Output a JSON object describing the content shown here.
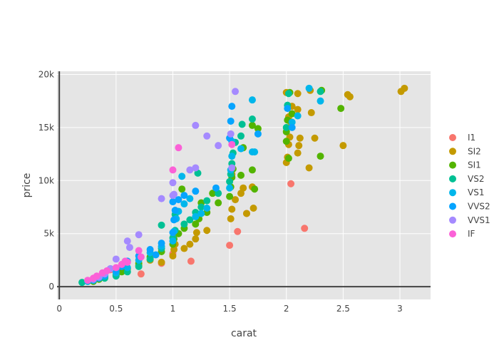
{
  "chart_data": {
    "type": "scatter",
    "title": "",
    "xlabel": "carat",
    "ylabel": "price",
    "xlim": [
      -0.02,
      3.27
    ],
    "ylim": [
      -1200,
      20300
    ],
    "x_ticks": [
      0,
      0.5,
      1,
      1.5,
      2,
      2.5,
      3
    ],
    "x_tick_labels": [
      "0",
      "0.5",
      "1",
      "1.5",
      "2",
      "2.5",
      "3"
    ],
    "y_ticks": [
      0,
      5000,
      10000,
      15000,
      20000
    ],
    "y_tick_labels": [
      "0",
      "5k",
      "10k",
      "15k",
      "20k"
    ],
    "grid": true,
    "plot_background": "#e5e5e5",
    "legend_position": "right",
    "legend": [
      "I1",
      "SI2",
      "SI1",
      "VS2",
      "VS1",
      "VVS2",
      "VVS1",
      "IF"
    ],
    "series": [
      {
        "name": "I1",
        "color": "#f8766d",
        "points": [
          [
            0.45,
            1600
          ],
          [
            0.72,
            1200
          ],
          [
            0.9,
            2200
          ],
          [
            1.0,
            3100
          ],
          [
            1.16,
            2400
          ],
          [
            1.5,
            3900
          ],
          [
            1.57,
            5200
          ],
          [
            1.65,
            6900
          ],
          [
            2.04,
            9700
          ],
          [
            2.16,
            5500
          ]
        ]
      },
      {
        "name": "SI2",
        "color": "#c49a00",
        "points": [
          [
            0.7,
            2000
          ],
          [
            0.8,
            2500
          ],
          [
            0.9,
            2300
          ],
          [
            1.0,
            2900
          ],
          [
            1.01,
            3500
          ],
          [
            1.02,
            4000
          ],
          [
            1.1,
            3600
          ],
          [
            1.15,
            4000
          ],
          [
            1.2,
            4500
          ],
          [
            1.21,
            5100
          ],
          [
            1.3,
            5300
          ],
          [
            1.51,
            6400
          ],
          [
            1.52,
            7300
          ],
          [
            1.55,
            8200
          ],
          [
            1.6,
            8800
          ],
          [
            1.62,
            9300
          ],
          [
            1.7,
            9400
          ],
          [
            1.71,
            7400
          ],
          [
            1.52,
            10600
          ],
          [
            1.65,
            6900
          ],
          [
            2.0,
            11700
          ],
          [
            2.01,
            12200
          ],
          [
            2.02,
            13400
          ],
          [
            2.03,
            14100
          ],
          [
            2.04,
            15500
          ],
          [
            2.05,
            17000
          ],
          [
            2.1,
            18200
          ],
          [
            2.1,
            16700
          ],
          [
            2.11,
            13300
          ],
          [
            2.12,
            14000
          ],
          [
            2.2,
            11200
          ],
          [
            2.22,
            16400
          ],
          [
            2.21,
            18500
          ],
          [
            2.25,
            14000
          ],
          [
            2.5,
            13300
          ],
          [
            2.54,
            18100
          ],
          [
            2.56,
            17900
          ],
          [
            3.01,
            18400
          ],
          [
            3.04,
            18700
          ],
          [
            2.0,
            18300
          ],
          [
            2.1,
            12600
          ],
          [
            2.02,
            16000
          ]
        ]
      },
      {
        "name": "SI1",
        "color": "#53b400",
        "points": [
          [
            0.3,
            500
          ],
          [
            0.35,
            700
          ],
          [
            0.4,
            900
          ],
          [
            0.5,
            1100
          ],
          [
            0.55,
            1400
          ],
          [
            0.6,
            1700
          ],
          [
            0.7,
            2200
          ],
          [
            0.8,
            2800
          ],
          [
            0.9,
            3300
          ],
          [
            1.0,
            4000
          ],
          [
            1.01,
            4500
          ],
          [
            1.05,
            5000
          ],
          [
            1.1,
            5500
          ],
          [
            1.2,
            5900
          ],
          [
            1.23,
            6400
          ],
          [
            1.3,
            7000
          ],
          [
            1.4,
            7900
          ],
          [
            1.5,
            8500
          ],
          [
            1.51,
            9400
          ],
          [
            1.52,
            10300
          ],
          [
            1.53,
            11100
          ],
          [
            1.6,
            10500
          ],
          [
            1.7,
            11000
          ],
          [
            1.72,
            9200
          ],
          [
            1.62,
            13100
          ],
          [
            1.7,
            15200
          ],
          [
            1.75,
            14900
          ],
          [
            2.0,
            14600
          ],
          [
            2.0,
            13700
          ],
          [
            2.01,
            15700
          ],
          [
            2.02,
            12100
          ],
          [
            2.03,
            18300
          ],
          [
            2.05,
            16300
          ],
          [
            2.3,
            12300
          ],
          [
            2.31,
            18500
          ],
          [
            2.48,
            16800
          ],
          [
            1.25,
            7900
          ],
          [
            1.08,
            9200
          ],
          [
            1.35,
            8800
          ]
        ]
      },
      {
        "name": "VS2",
        "color": "#00c094",
        "points": [
          [
            0.2,
            400
          ],
          [
            0.25,
            500
          ],
          [
            0.3,
            600
          ],
          [
            0.4,
            800
          ],
          [
            0.5,
            1000
          ],
          [
            0.6,
            1400
          ],
          [
            0.7,
            1900
          ],
          [
            0.8,
            2600
          ],
          [
            0.9,
            3600
          ],
          [
            1.0,
            4600
          ],
          [
            1.02,
            5300
          ],
          [
            1.1,
            5900
          ],
          [
            1.15,
            6300
          ],
          [
            1.2,
            7000
          ],
          [
            1.25,
            7500
          ],
          [
            1.3,
            8100
          ],
          [
            1.4,
            8800
          ],
          [
            1.5,
            9900
          ],
          [
            1.51,
            10600
          ],
          [
            1.52,
            11600
          ],
          [
            1.53,
            12600
          ],
          [
            1.55,
            13600
          ],
          [
            1.6,
            14200
          ],
          [
            1.61,
            15300
          ],
          [
            1.7,
            15800
          ],
          [
            2.0,
            15000
          ],
          [
            2.01,
            17100
          ],
          [
            2.02,
            18200
          ],
          [
            2.3,
            18400
          ],
          [
            0.9,
            5800
          ],
          [
            1.02,
            6800
          ],
          [
            1.22,
            10700
          ]
        ]
      },
      {
        "name": "VS1",
        "color": "#00b6eb",
        "points": [
          [
            0.25,
            500
          ],
          [
            0.3,
            700
          ],
          [
            0.4,
            1000
          ],
          [
            0.5,
            1300
          ],
          [
            0.6,
            1800
          ],
          [
            0.7,
            2500
          ],
          [
            0.8,
            3200
          ],
          [
            0.9,
            3800
          ],
          [
            1.0,
            4300
          ],
          [
            1.01,
            5200
          ],
          [
            1.03,
            6400
          ],
          [
            1.05,
            7100
          ],
          [
            1.1,
            7800
          ],
          [
            1.15,
            8300
          ],
          [
            1.2,
            6600
          ],
          [
            1.25,
            6900
          ],
          [
            1.3,
            7400
          ],
          [
            1.5,
            9300
          ],
          [
            1.51,
            11000
          ],
          [
            1.52,
            12300
          ],
          [
            1.6,
            13000
          ],
          [
            1.7,
            12700
          ],
          [
            1.72,
            12700
          ],
          [
            1.7,
            17600
          ],
          [
            2.05,
            15500
          ],
          [
            2.1,
            16100
          ],
          [
            2.2,
            18700
          ],
          [
            2.3,
            17500
          ],
          [
            1.52,
            13700
          ],
          [
            1.08,
            10400
          ]
        ]
      },
      {
        "name": "VVS2",
        "color": "#06a4ff",
        "points": [
          [
            0.3,
            600
          ],
          [
            0.35,
            800
          ],
          [
            0.4,
            1100
          ],
          [
            0.5,
            1500
          ],
          [
            0.55,
            1900
          ],
          [
            0.6,
            2400
          ],
          [
            0.7,
            2900
          ],
          [
            0.8,
            3500
          ],
          [
            0.9,
            4100
          ],
          [
            1.0,
            5100
          ],
          [
            1.01,
            6300
          ],
          [
            1.02,
            7200
          ],
          [
            1.05,
            8200
          ],
          [
            1.1,
            8600
          ],
          [
            1.2,
            9000
          ],
          [
            1.38,
            9300
          ],
          [
            1.5,
            14000
          ],
          [
            1.51,
            15600
          ],
          [
            1.52,
            17000
          ],
          [
            1.75,
            14400
          ],
          [
            2.01,
            16800
          ],
          [
            2.05,
            15000
          ],
          [
            1.0,
            8000
          ],
          [
            0.85,
            3000
          ]
        ]
      },
      {
        "name": "VVS1",
        "color": "#a58aff",
        "points": [
          [
            0.3,
            700
          ],
          [
            0.35,
            900
          ],
          [
            0.4,
            1200
          ],
          [
            0.45,
            1700
          ],
          [
            0.5,
            2600
          ],
          [
            0.6,
            4300
          ],
          [
            0.7,
            4900
          ],
          [
            0.62,
            3700
          ],
          [
            0.9,
            8300
          ],
          [
            1.0,
            9800
          ],
          [
            1.01,
            8700
          ],
          [
            1.15,
            11000
          ],
          [
            1.2,
            11200
          ],
          [
            1.2,
            15200
          ],
          [
            1.3,
            14200
          ],
          [
            1.4,
            13300
          ],
          [
            1.51,
            14400
          ],
          [
            1.52,
            11200
          ],
          [
            1.55,
            18400
          ],
          [
            1.0,
            8600
          ]
        ]
      },
      {
        "name": "IF",
        "color": "#fb61d7",
        "points": [
          [
            0.25,
            600
          ],
          [
            0.3,
            800
          ],
          [
            0.33,
            1000
          ],
          [
            0.38,
            1300
          ],
          [
            0.42,
            1500
          ],
          [
            0.5,
            1800
          ],
          [
            0.55,
            2100
          ],
          [
            0.58,
            2400
          ],
          [
            0.6,
            2300
          ],
          [
            0.7,
            3400
          ],
          [
            0.72,
            2800
          ],
          [
            1.0,
            11000
          ],
          [
            1.05,
            13100
          ],
          [
            1.52,
            13400
          ]
        ]
      }
    ]
  }
}
